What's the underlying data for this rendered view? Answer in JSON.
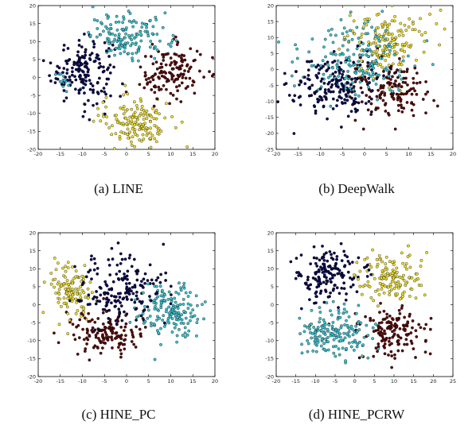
{
  "chart_data": [
    {
      "type": "scatter",
      "caption": "(a) LINE",
      "xlim": [
        -20,
        20
      ],
      "ylim": [
        -20,
        20
      ],
      "xticks": [
        -20,
        -15,
        -10,
        -5,
        0,
        5,
        10,
        15,
        20
      ],
      "yticks": [
        -20,
        -15,
        -10,
        -5,
        0,
        5,
        10,
        15,
        20
      ],
      "series": [
        {
          "color": "#0a0a50",
          "clusters": [
            {
              "cx": -10,
              "cy": 2,
              "sx": 3.5,
              "sy": 4.5,
              "n": 170
            }
          ]
        },
        {
          "color": "#3cc4d0",
          "clusters": [
            {
              "cx": 1,
              "cy": 11.5,
              "sx": 4.5,
              "sy": 3,
              "n": 150
            },
            {
              "cx": -14,
              "cy": -1,
              "sx": 1.2,
              "sy": 1.2,
              "n": 15
            }
          ]
        },
        {
          "color": "#5a0a0a",
          "clusters": [
            {
              "cx": 10,
              "cy": 1,
              "sx": 3.5,
              "sy": 4,
              "n": 140
            }
          ]
        },
        {
          "color": "#f0e030",
          "clusters": [
            {
              "cx": 2,
              "cy": -12,
              "sx": 4,
              "sy": 3.5,
              "n": 150
            }
          ]
        }
      ]
    },
    {
      "type": "scatter",
      "caption": "(b) DeepWalk",
      "xlim": [
        -20,
        20
      ],
      "ylim": [
        -25,
        20
      ],
      "xticks": [
        -20,
        -15,
        -10,
        -5,
        0,
        5,
        10,
        15,
        20
      ],
      "yticks": [
        -25,
        -20,
        -15,
        -10,
        -5,
        0,
        5,
        10,
        15,
        20
      ],
      "series": [
        {
          "color": "#0a0a50",
          "clusters": [
            {
              "cx": -7,
              "cy": -5,
              "sx": 5,
              "sy": 5,
              "n": 190
            }
          ]
        },
        {
          "color": "#3cc4d0",
          "clusters": [
            {
              "cx": -2,
              "cy": 3,
              "sx": 6.5,
              "sy": 6,
              "n": 190
            }
          ]
        },
        {
          "color": "#5a0a0a",
          "clusters": [
            {
              "cx": 5,
              "cy": -6,
              "sx": 4.5,
              "sy": 4,
              "n": 150
            }
          ]
        },
        {
          "color": "#f0e030",
          "clusters": [
            {
              "cx": 5,
              "cy": 8,
              "sx": 4.5,
              "sy": 5,
              "n": 150
            }
          ]
        }
      ]
    },
    {
      "type": "scatter",
      "caption": "(c) HINE_PC",
      "xlim": [
        -20,
        20
      ],
      "ylim": [
        -20,
        20
      ],
      "xticks": [
        -20,
        -15,
        -10,
        -5,
        0,
        5,
        10,
        15,
        20
      ],
      "yticks": [
        -20,
        -15,
        -10,
        -5,
        0,
        5,
        10,
        15,
        20
      ],
      "series": [
        {
          "color": "#0a0a50",
          "clusters": [
            {
              "cx": -1,
              "cy": 4,
              "sx": 5,
              "sy": 5,
              "n": 190
            }
          ]
        },
        {
          "color": "#3cc4d0",
          "clusters": [
            {
              "cx": 10,
              "cy": -2,
              "sx": 3.5,
              "sy": 4,
              "n": 160
            }
          ]
        },
        {
          "color": "#5a0a0a",
          "clusters": [
            {
              "cx": -5,
              "cy": -8,
              "sx": 4,
              "sy": 3,
              "n": 150
            }
          ]
        },
        {
          "color": "#f0e030",
          "clusters": [
            {
              "cx": -13,
              "cy": 4,
              "sx": 2.5,
              "sy": 3.5,
              "n": 120
            }
          ]
        }
      ]
    },
    {
      "type": "scatter",
      "caption": "(d) HINE_PCRW",
      "xlim": [
        -20,
        25
      ],
      "ylim": [
        -20,
        20
      ],
      "xticks": [
        -20,
        -15,
        -10,
        -5,
        0,
        5,
        10,
        15,
        20,
        25
      ],
      "yticks": [
        -20,
        -15,
        -10,
        -5,
        0,
        5,
        10,
        15,
        20
      ],
      "series": [
        {
          "color": "#0a0a50",
          "clusters": [
            {
              "cx": -7,
              "cy": 8,
              "sx": 4,
              "sy": 4,
              "n": 160
            }
          ]
        },
        {
          "color": "#3cc4d0",
          "clusters": [
            {
              "cx": -5,
              "cy": -8,
              "sx": 4.5,
              "sy": 3.5,
              "n": 170
            }
          ]
        },
        {
          "color": "#5a0a0a",
          "clusters": [
            {
              "cx": 10,
              "cy": -8,
              "sx": 4,
              "sy": 3.5,
              "n": 140
            }
          ]
        },
        {
          "color": "#f0e030",
          "clusters": [
            {
              "cx": 9,
              "cy": 7,
              "sx": 4,
              "sy": 3.5,
              "n": 140
            }
          ]
        }
      ]
    }
  ]
}
